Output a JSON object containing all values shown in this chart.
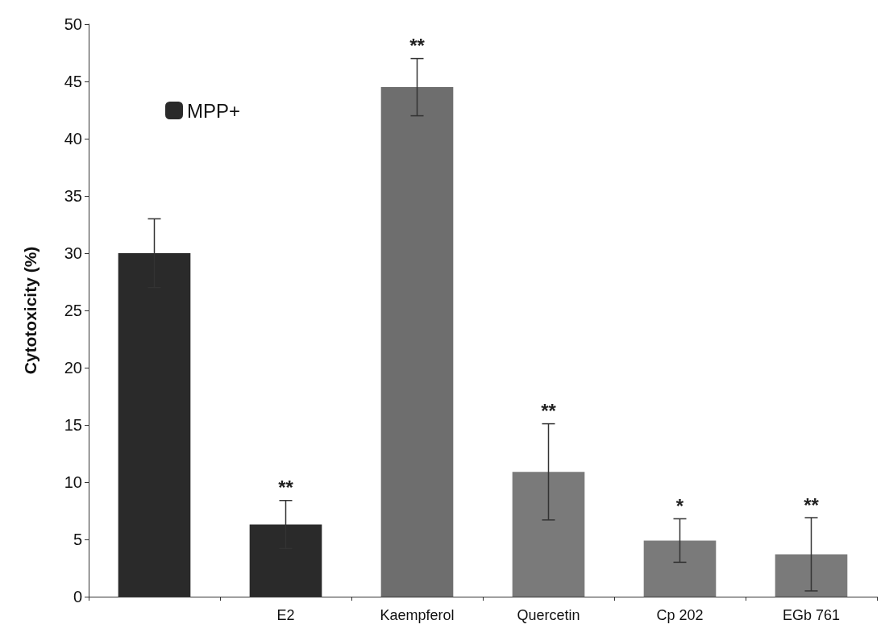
{
  "chart_data": {
    "type": "bar",
    "ylabel": "Cytotoxicity (%)",
    "categories": [
      null,
      "E2",
      "Kaempferol",
      "Quercetin",
      "Cp 202",
      "EGb 761"
    ],
    "series": [
      {
        "name": "MPP+",
        "color": "#2a2a2a",
        "colors": [
          "#2a2a2a",
          "#2a2a2a",
          "#6e6e6e",
          "#7a7a7a",
          "#7a7a7a",
          "#7a7a7a"
        ],
        "values": [
          30,
          6.3,
          44.5,
          10.9,
          4.9,
          3.7
        ],
        "errors": [
          3,
          2.1,
          2.5,
          4.2,
          1.9,
          3.2
        ]
      }
    ],
    "ylim": [
      0,
      50
    ],
    "yticks": [
      0,
      5,
      10,
      15,
      20,
      25,
      30,
      35,
      40,
      45,
      50
    ],
    "grid": false,
    "legend": "top left",
    "annotations": [
      {
        "text": "**",
        "x": "E2",
        "y": 8.4
      },
      {
        "text": "**",
        "x": "Kaempferol",
        "y": 47
      },
      {
        "text": "**",
        "x": "Quercetin",
        "y": 15.1
      },
      {
        "text": "*",
        "x": "Cp 202",
        "y": 6.8
      },
      {
        "text": "**",
        "x": "EGb 761",
        "y": 6.9
      }
    ]
  }
}
